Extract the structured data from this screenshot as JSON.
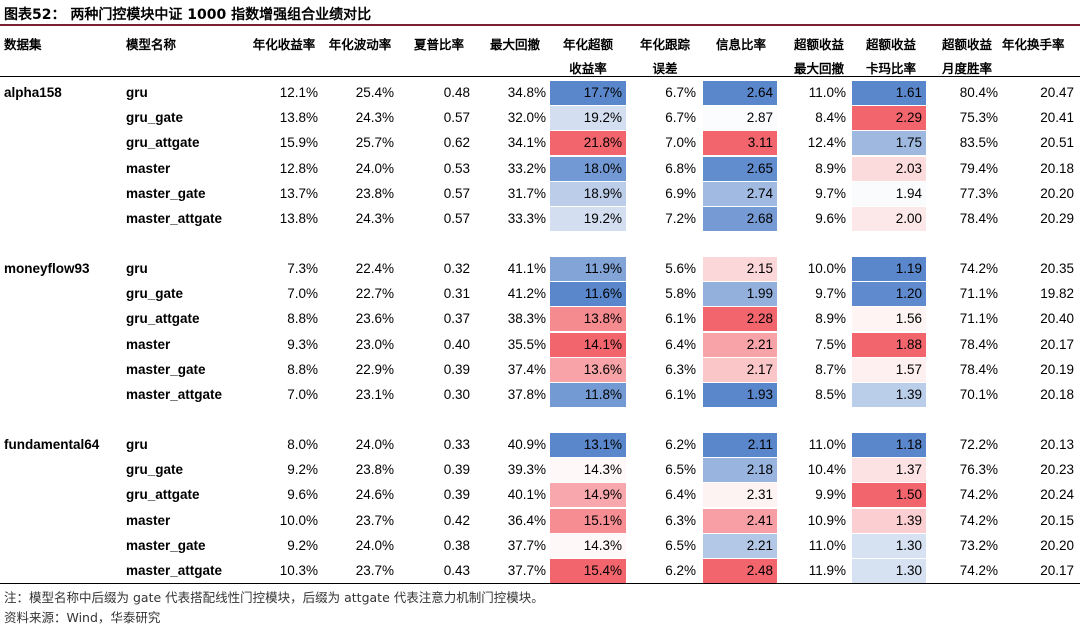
{
  "title": "图表52： 两种门控模块中证 1000 指数增强组合业绩对比",
  "headers": {
    "dataset": "数据集",
    "model": "模型名称",
    "ann_ret": "年化收益率",
    "ann_vol": "年化波动率",
    "sharpe": "夏普比率",
    "mdd": "最大回撤",
    "ex_ret_l1": "年化超额",
    "ex_ret_l2": "收益率",
    "te_l1": "年化跟踪",
    "te_l2": "误差",
    "ir": "信息比率",
    "ex_mdd_l1": "超额收益",
    "ex_mdd_l2": "最大回撤",
    "calmar_l1": "超额收益",
    "calmar_l2": "卡玛比率",
    "winrate_l1": "超额收益",
    "winrate_l2": "月度胜率",
    "turnover": "年化换手率"
  },
  "groups": [
    {
      "dataset": "alpha158",
      "rows": [
        {
          "model": "gru",
          "ann_ret": "12.1%",
          "ann_vol": "25.4%",
          "sharpe": "0.48",
          "mdd": "34.8%",
          "ex_ret": "17.7%",
          "te": "6.7%",
          "ir": "2.64",
          "ex_mdd": "11.0%",
          "calmar": "1.61",
          "winrate": "80.4%",
          "turnover": "20.47"
        },
        {
          "model": "gru_gate",
          "ann_ret": "13.8%",
          "ann_vol": "24.3%",
          "sharpe": "0.57",
          "mdd": "32.0%",
          "ex_ret": "19.2%",
          "te": "6.7%",
          "ir": "2.87",
          "ex_mdd": "8.4%",
          "calmar": "2.29",
          "winrate": "75.3%",
          "turnover": "20.41"
        },
        {
          "model": "gru_attgate",
          "ann_ret": "15.9%",
          "ann_vol": "25.7%",
          "sharpe": "0.62",
          "mdd": "34.1%",
          "ex_ret": "21.8%",
          "te": "7.0%",
          "ir": "3.11",
          "ex_mdd": "12.4%",
          "calmar": "1.75",
          "winrate": "83.5%",
          "turnover": "20.51"
        },
        {
          "model": "master",
          "ann_ret": "12.8%",
          "ann_vol": "24.0%",
          "sharpe": "0.53",
          "mdd": "33.2%",
          "ex_ret": "18.0%",
          "te": "6.8%",
          "ir": "2.65",
          "ex_mdd": "8.9%",
          "calmar": "2.03",
          "winrate": "79.4%",
          "turnover": "20.18"
        },
        {
          "model": "master_gate",
          "ann_ret": "13.7%",
          "ann_vol": "23.8%",
          "sharpe": "0.57",
          "mdd": "31.7%",
          "ex_ret": "18.9%",
          "te": "6.9%",
          "ir": "2.74",
          "ex_mdd": "9.7%",
          "calmar": "1.94",
          "winrate": "77.3%",
          "turnover": "20.20"
        },
        {
          "model": "master_attgate",
          "ann_ret": "13.8%",
          "ann_vol": "24.3%",
          "sharpe": "0.57",
          "mdd": "33.3%",
          "ex_ret": "19.2%",
          "te": "7.2%",
          "ir": "2.68",
          "ex_mdd": "9.6%",
          "calmar": "2.00",
          "winrate": "78.4%",
          "turnover": "20.29"
        }
      ]
    },
    {
      "dataset": "moneyflow93",
      "rows": [
        {
          "model": "gru",
          "ann_ret": "7.3%",
          "ann_vol": "22.4%",
          "sharpe": "0.32",
          "mdd": "41.1%",
          "ex_ret": "11.9%",
          "te": "5.6%",
          "ir": "2.15",
          "ex_mdd": "10.0%",
          "calmar": "1.19",
          "winrate": "74.2%",
          "turnover": "20.35"
        },
        {
          "model": "gru_gate",
          "ann_ret": "7.0%",
          "ann_vol": "22.7%",
          "sharpe": "0.31",
          "mdd": "41.2%",
          "ex_ret": "11.6%",
          "te": "5.8%",
          "ir": "1.99",
          "ex_mdd": "9.7%",
          "calmar": "1.20",
          "winrate": "71.1%",
          "turnover": "19.82"
        },
        {
          "model": "gru_attgate",
          "ann_ret": "8.8%",
          "ann_vol": "23.6%",
          "sharpe": "0.37",
          "mdd": "38.3%",
          "ex_ret": "13.8%",
          "te": "6.1%",
          "ir": "2.28",
          "ex_mdd": "8.9%",
          "calmar": "1.56",
          "winrate": "71.1%",
          "turnover": "20.40"
        },
        {
          "model": "master",
          "ann_ret": "9.3%",
          "ann_vol": "23.0%",
          "sharpe": "0.40",
          "mdd": "35.5%",
          "ex_ret": "14.1%",
          "te": "6.4%",
          "ir": "2.21",
          "ex_mdd": "7.5%",
          "calmar": "1.88",
          "winrate": "78.4%",
          "turnover": "20.17"
        },
        {
          "model": "master_gate",
          "ann_ret": "8.8%",
          "ann_vol": "22.9%",
          "sharpe": "0.39",
          "mdd": "37.4%",
          "ex_ret": "13.6%",
          "te": "6.3%",
          "ir": "2.17",
          "ex_mdd": "8.7%",
          "calmar": "1.57",
          "winrate": "78.4%",
          "turnover": "20.19"
        },
        {
          "model": "master_attgate",
          "ann_ret": "7.0%",
          "ann_vol": "23.1%",
          "sharpe": "0.30",
          "mdd": "37.8%",
          "ex_ret": "11.8%",
          "te": "6.1%",
          "ir": "1.93",
          "ex_mdd": "8.5%",
          "calmar": "1.39",
          "winrate": "70.1%",
          "turnover": "20.18"
        }
      ]
    },
    {
      "dataset": "fundamental64",
      "rows": [
        {
          "model": "gru",
          "ann_ret": "8.0%",
          "ann_vol": "24.0%",
          "sharpe": "0.33",
          "mdd": "40.9%",
          "ex_ret": "13.1%",
          "te": "6.2%",
          "ir": "2.11",
          "ex_mdd": "11.0%",
          "calmar": "1.18",
          "winrate": "72.2%",
          "turnover": "20.13"
        },
        {
          "model": "gru_gate",
          "ann_ret": "9.2%",
          "ann_vol": "23.8%",
          "sharpe": "0.39",
          "mdd": "39.3%",
          "ex_ret": "14.3%",
          "te": "6.5%",
          "ir": "2.18",
          "ex_mdd": "10.4%",
          "calmar": "1.37",
          "winrate": "76.3%",
          "turnover": "20.23"
        },
        {
          "model": "gru_attgate",
          "ann_ret": "9.6%",
          "ann_vol": "24.6%",
          "sharpe": "0.39",
          "mdd": "40.1%",
          "ex_ret": "14.9%",
          "te": "6.4%",
          "ir": "2.31",
          "ex_mdd": "9.9%",
          "calmar": "1.50",
          "winrate": "74.2%",
          "turnover": "20.24"
        },
        {
          "model": "master",
          "ann_ret": "10.0%",
          "ann_vol": "23.7%",
          "sharpe": "0.42",
          "mdd": "36.4%",
          "ex_ret": "15.1%",
          "te": "6.3%",
          "ir": "2.41",
          "ex_mdd": "10.9%",
          "calmar": "1.39",
          "winrate": "74.2%",
          "turnover": "20.15"
        },
        {
          "model": "master_gate",
          "ann_ret": "9.2%",
          "ann_vol": "24.0%",
          "sharpe": "0.38",
          "mdd": "37.7%",
          "ex_ret": "14.3%",
          "te": "6.5%",
          "ir": "2.21",
          "ex_mdd": "11.0%",
          "calmar": "1.30",
          "winrate": "73.2%",
          "turnover": "20.20"
        },
        {
          "model": "master_attgate",
          "ann_ret": "10.3%",
          "ann_vol": "23.7%",
          "sharpe": "0.43",
          "mdd": "37.7%",
          "ex_ret": "15.4%",
          "te": "6.2%",
          "ir": "2.48",
          "ex_mdd": "11.9%",
          "calmar": "1.30",
          "winrate": "74.2%",
          "turnover": "20.17"
        }
      ]
    }
  ],
  "heat_colors": {
    "low": "#5a87cb",
    "mid": "#ffffff",
    "high": "#f2656c"
  },
  "footnotes": {
    "note": "注：模型名称中后缀为 gate 代表搭配线性门控模块，后缀为 attgate 代表注意力机制门控模块。",
    "source": "资料来源：Wind，华泰研究"
  }
}
